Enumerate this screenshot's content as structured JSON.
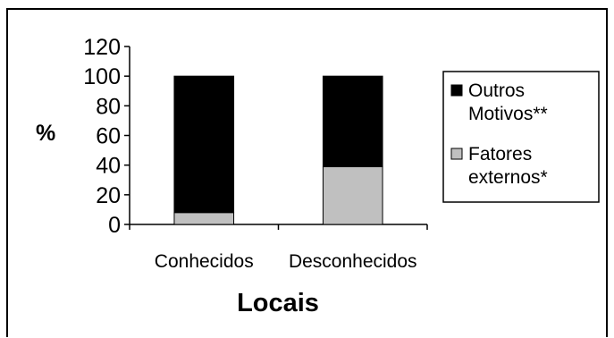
{
  "chart_data": {
    "type": "bar",
    "stacked": true,
    "categories": [
      "Conhecidos",
      "Desconhecidos"
    ],
    "series": [
      {
        "name": "Fatores externos*",
        "values": [
          8,
          39
        ],
        "color": "#c0c0c0"
      },
      {
        "name": "Outros Motivos**",
        "values": [
          92,
          61
        ],
        "color": "#000000"
      }
    ],
    "y_ticks": [
      "0",
      "20",
      "40",
      "60",
      "80",
      "100",
      "120"
    ],
    "ylim": [
      0,
      120
    ],
    "xlabel": "Locais",
    "ylabel": "%",
    "grid": false,
    "legend_position": "right",
    "legend": {
      "items": [
        {
          "lines": [
            "Outros",
            "Motivos**"
          ],
          "color": "#000000"
        },
        {
          "lines": [
            "Fatores",
            "externos*"
          ],
          "color": "#c0c0c0"
        }
      ]
    }
  }
}
